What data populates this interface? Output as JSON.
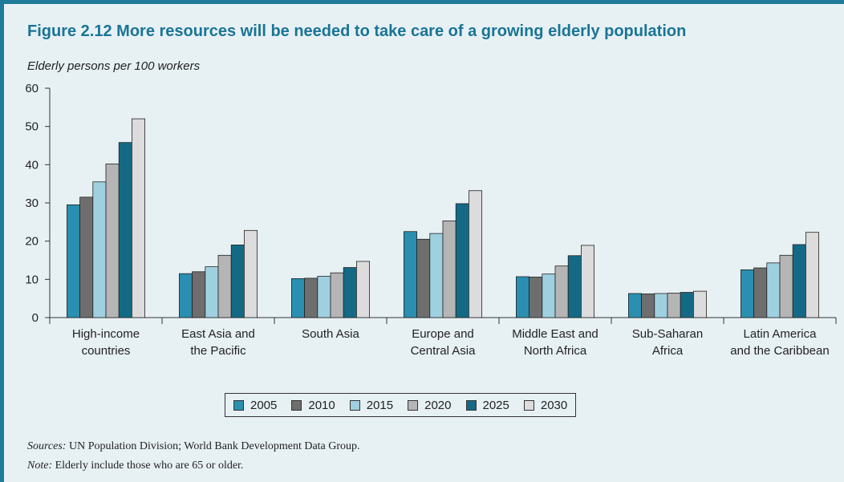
{
  "title": "Figure 2.12  More resources will be needed to take care of a growing elderly population",
  "subtitle": "Elderly persons per 100 workers",
  "sources_label": "Sources:",
  "sources_text": " UN Population Division; World Bank Development Data Group.",
  "note_label": "Note:",
  "note_text": " Elderly include those who are 65 or older.",
  "chart_data": {
    "type": "bar",
    "ylim": [
      0,
      60
    ],
    "yticks": [
      0,
      10,
      20,
      30,
      40,
      50,
      60
    ],
    "grid": false,
    "legend_position": "bottom",
    "categories": [
      [
        "High-income",
        "countries"
      ],
      [
        "East Asia and",
        "the Pacific"
      ],
      [
        "South Asia"
      ],
      [
        "Europe and",
        "Central Asia"
      ],
      [
        "Middle East and",
        "North Africa"
      ],
      [
        "Sub-Saharan",
        "Africa"
      ],
      [
        "Latin America",
        "and the Caribbean"
      ]
    ],
    "series": [
      {
        "name": "2005",
        "color": "#2a8fb0",
        "values": [
          29.5,
          11.5,
          10.2,
          22.5,
          10.7,
          6.3,
          12.5
        ]
      },
      {
        "name": "2010",
        "color": "#6e6e6e",
        "values": [
          31.5,
          12.0,
          10.3,
          20.5,
          10.6,
          6.2,
          13.0
        ]
      },
      {
        "name": "2015",
        "color": "#9fd0e0",
        "values": [
          35.5,
          13.3,
          10.8,
          22.0,
          11.4,
          6.3,
          14.3
        ]
      },
      {
        "name": "2020",
        "color": "#b5b5b5",
        "values": [
          40.2,
          16.3,
          11.7,
          25.3,
          13.5,
          6.4,
          16.3
        ]
      },
      {
        "name": "2025",
        "color": "#146a85",
        "values": [
          45.8,
          19.0,
          13.1,
          29.8,
          16.2,
          6.6,
          19.1
        ]
      },
      {
        "name": "2030",
        "color": "#dcdcdc",
        "values": [
          52.0,
          22.8,
          14.7,
          33.2,
          18.9,
          6.9,
          22.3
        ]
      }
    ]
  }
}
